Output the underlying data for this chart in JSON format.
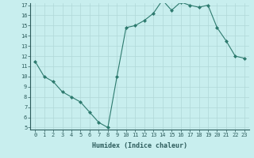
{
  "x": [
    0,
    1,
    2,
    3,
    4,
    5,
    6,
    7,
    8,
    9,
    10,
    11,
    12,
    13,
    14,
    15,
    16,
    17,
    18,
    19,
    20,
    21,
    22,
    23
  ],
  "y": [
    11.5,
    10.0,
    9.5,
    8.5,
    8.0,
    7.5,
    6.5,
    5.5,
    5.0,
    10.0,
    14.8,
    15.0,
    15.5,
    16.2,
    17.5,
    16.5,
    17.3,
    17.0,
    16.8,
    17.0,
    14.8,
    13.5,
    12.0,
    11.8
  ],
  "xlabel": "Humidex (Indice chaleur)",
  "ylim": [
    5,
    17
  ],
  "xlim": [
    -0.5,
    23.5
  ],
  "yticks": [
    5,
    6,
    7,
    8,
    9,
    10,
    11,
    12,
    13,
    14,
    15,
    16,
    17
  ],
  "xticks": [
    0,
    1,
    2,
    3,
    4,
    5,
    6,
    7,
    8,
    9,
    10,
    11,
    12,
    13,
    14,
    15,
    16,
    17,
    18,
    19,
    20,
    21,
    22,
    23
  ],
  "line_color": "#2d7a6e",
  "marker": "D",
  "marker_size": 2,
  "bg_color": "#c8eeee",
  "grid_color": "#b0d8d8",
  "xlabel_fontsize": 6,
  "tick_fontsize": 5
}
